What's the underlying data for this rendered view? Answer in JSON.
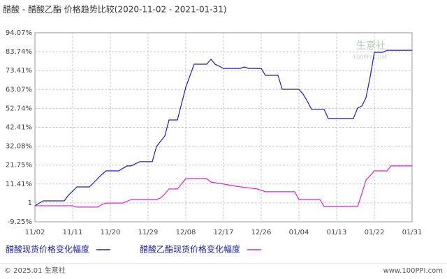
{
  "chart_data": {
    "type": "line",
    "title": "醋酸 - 醋酸乙酯 价格趋势比较(2020-11-02 - 2021-01-31)",
    "watermark": "生意社",
    "watermark_sub": "100PPI.COM",
    "footer_left": "© 2025.01 生意社",
    "footer_right": "www.100PPI.com",
    "categories": [
      "11/02",
      null,
      null,
      null,
      null,
      null,
      null,
      null,
      null,
      "11/11",
      null,
      null,
      null,
      null,
      null,
      null,
      null,
      null,
      "11/20",
      null,
      null,
      null,
      null,
      null,
      null,
      null,
      null,
      "11/29",
      null,
      null,
      null,
      null,
      null,
      null,
      null,
      null,
      "12/08",
      null,
      null,
      null,
      null,
      null,
      null,
      null,
      null,
      "12/17",
      null,
      null,
      null,
      null,
      null,
      null,
      null,
      null,
      "12/26",
      null,
      null,
      null,
      null,
      null,
      null,
      null,
      null,
      "01/04",
      null,
      null,
      null,
      null,
      null,
      null,
      null,
      null,
      "01/13",
      null,
      null,
      null,
      null,
      null,
      null,
      null,
      null,
      "01/22",
      null,
      null,
      null,
      null,
      null,
      null,
      null,
      null,
      "01/31"
    ],
    "series": [
      {
        "name": "醋酸现货价格变化幅度",
        "color": "#1a1acc",
        "values": [
          -0.5,
          0.9,
          2.2,
          2.2,
          2.2,
          2.2,
          2.2,
          2.2,
          5.3,
          7.5,
          9.8,
          9.8,
          9.8,
          9.8,
          12.1,
          14.4,
          16.7,
          18.6,
          18.6,
          18.6,
          18.6,
          20.0,
          21.3,
          21.3,
          22.5,
          23.6,
          23.6,
          23.6,
          23.6,
          31.9,
          34.8,
          37.7,
          46.4,
          46.4,
          46.4,
          55.4,
          64.3,
          70.6,
          76.9,
          76.9,
          76.9,
          76.9,
          79.6,
          76.9,
          75.8,
          74.6,
          74.6,
          74.6,
          74.6,
          74.6,
          75.4,
          74.6,
          74.6,
          74.6,
          74.6,
          70.8,
          70.8,
          70.8,
          70.8,
          63.2,
          63.2,
          63.2,
          63.2,
          63.2,
          60.5,
          56.7,
          52.2,
          52.2,
          52.2,
          52.2,
          47.2,
          47.2,
          47.2,
          47.2,
          47.2,
          47.2,
          47.2,
          52.9,
          54,
          58.6,
          70,
          83.4,
          83.4,
          83.4,
          84.5,
          84.5,
          84.5,
          84.5,
          84.5,
          84.5,
          84.5
        ]
      },
      {
        "name": "醋酸乙酯现货价格变化幅度",
        "color": "#e020d8",
        "values": [
          -0.5,
          -0.5,
          -0.5,
          -0.5,
          -0.5,
          -0.5,
          -0.5,
          -0.5,
          -0.5,
          -0.5,
          -1.2,
          -1.2,
          -1.2,
          -1.2,
          -1.2,
          -1.2,
          0.3,
          1,
          1,
          1,
          1,
          1,
          2,
          2.9,
          2.9,
          2.9,
          2.9,
          2.9,
          2.9,
          2.9,
          3.8,
          6,
          8.7,
          8.7,
          8.7,
          11.5,
          14.4,
          14.4,
          14.4,
          14.4,
          14.4,
          14.4,
          12.5,
          12.1,
          11.7,
          11.4,
          11,
          10.6,
          10.2,
          9.9,
          9.6,
          9.3,
          9,
          8.7,
          8,
          7.2,
          7.2,
          7.2,
          7.2,
          7.2,
          7.2,
          7.2,
          7.2,
          2.9,
          2.9,
          2.9,
          2.9,
          2.9,
          2.9,
          -0.9,
          -0.9,
          -0.9,
          -0.9,
          -0.9,
          -0.9,
          -0.9,
          -0.9,
          -0.9,
          6,
          13.6,
          16,
          18.6,
          18.6,
          18.6,
          18.6,
          21.3,
          21.3,
          21.3,
          21.3,
          21.3,
          21.3
        ]
      }
    ],
    "ylim": [
      -9.25,
      94.07
    ],
    "yticks": [
      {
        "value": -9.25,
        "label": "-9.25%"
      },
      {
        "value": 1.08,
        "label": "1"
      },
      {
        "value": 11.41,
        "label": "11.41%"
      },
      {
        "value": 21.75,
        "label": "21.75%"
      },
      {
        "value": 32.08,
        "label": "32.08%"
      },
      {
        "value": 42.41,
        "label": "42.41%"
      },
      {
        "value": 52.74,
        "label": "52.74%"
      },
      {
        "value": 63.07,
        "label": "63.07%"
      },
      {
        "value": 73.41,
        "label": "73.41%"
      },
      {
        "value": 83.74,
        "label": "83.74%"
      },
      {
        "value": 94.07,
        "label": "94.07%"
      }
    ],
    "grid": true
  }
}
